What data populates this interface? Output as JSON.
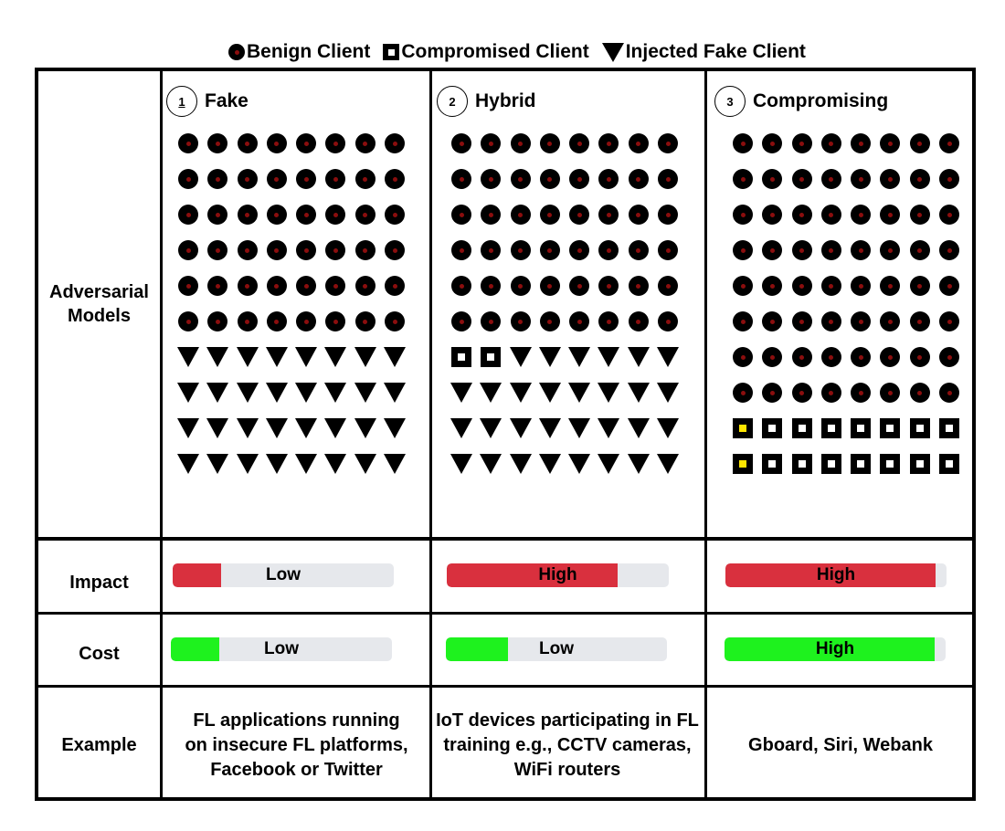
{
  "legend": {
    "benign": "Benign Client",
    "compromised": "Compromised Client",
    "fake": "Injected Fake Client"
  },
  "rows": {
    "models": "Adversarial Models",
    "impact": "Impact",
    "cost": "Cost",
    "example": "Example"
  },
  "columns": [
    {
      "number": "1",
      "title": "Fake",
      "grid": [
        "BBBBBBBB",
        "BBBBBBBB",
        "BBBBBBBB",
        "BBBBBBBB",
        "BBBBBBBB",
        "BBBBBBBB",
        "TTTTTTTT",
        "TTTTTTTT",
        "TTTTTTTT",
        "TTTTTTTT"
      ],
      "impact": {
        "label": "Low",
        "level": 0.22
      },
      "cost": {
        "label": "Low",
        "level": 0.22
      },
      "example": "FL applications running on insecure FL platforms, Facebook or Twitter"
    },
    {
      "number": "2",
      "title": "Hybrid",
      "grid": [
        "BBBBBBBB",
        "BBBBBBBB",
        "BBBBBBBB",
        "BBBBBBBB",
        "BBBBBBBB",
        "BBBBBBBB",
        "SSTTTTTT",
        "TTTTTTTT",
        "TTTTTTTT",
        "TTTTTTTT"
      ],
      "impact": {
        "label": "High",
        "level": 0.77
      },
      "cost": {
        "label": "Low",
        "level": 0.28
      },
      "example": "IoT devices participating in FL training e.g., CCTV cameras, WiFi routers"
    },
    {
      "number": "3",
      "title": "Compromising",
      "grid": [
        "BBBBBBBB",
        "BBBBBBBB",
        "BBBBBBBB",
        "BBBBBBBB",
        "BBBBBBBB",
        "BBBBBBBB",
        "BBBBBBBB",
        "BBBBBBBB",
        "YSSSSSSS",
        "YSSSSSSS"
      ],
      "impact": {
        "label": "High",
        "level": 0.95
      },
      "cost": {
        "label": "High",
        "level": 0.95
      },
      "example": "Gboard, Siri, Webank"
    }
  ],
  "colors": {
    "impact_fill": "#d9303e",
    "cost_fill": "#1ef21e",
    "bar_track": "#e6e8ec",
    "benign_dot": "#8b0e0e",
    "highlight_square": "#ffe600"
  }
}
